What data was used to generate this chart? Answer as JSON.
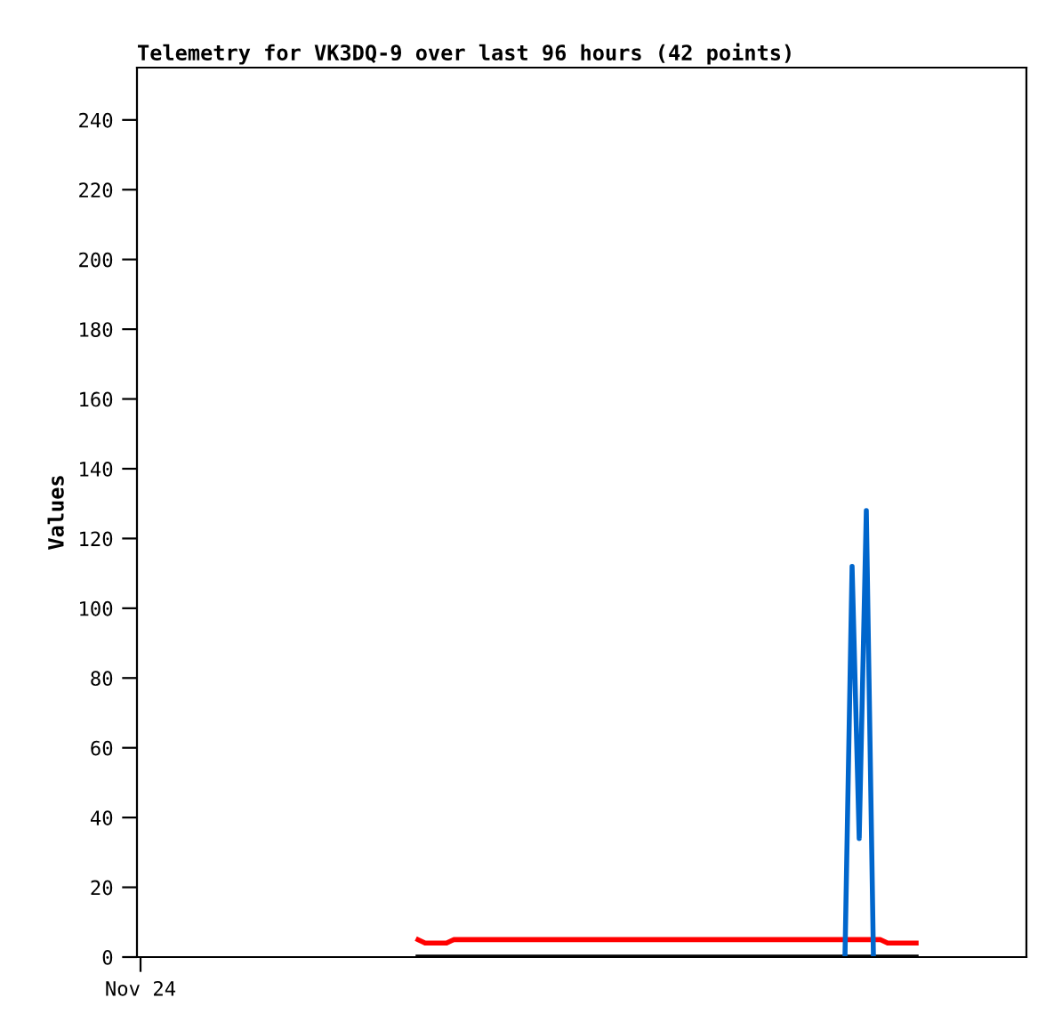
{
  "chart_data": {
    "type": "line",
    "title": "Telemetry for VK3DQ-9 over last 96 hours (42 points)",
    "ylabel": "Values",
    "categories": [
      "Nov 24",
      null,
      null,
      null,
      null,
      null,
      null,
      null,
      null,
      null,
      null,
      null,
      null,
      null,
      null,
      null,
      null,
      null,
      null,
      null,
      null,
      null,
      null,
      null,
      null,
      null,
      null,
      null,
      null,
      null,
      null,
      null,
      null,
      null,
      null,
      null,
      null,
      null,
      null,
      null,
      null,
      null,
      null,
      null,
      null,
      null,
      null,
      null,
      null,
      null,
      null,
      null,
      null,
      null,
      null,
      null,
      null,
      null,
      null,
      null,
      null,
      null,
      null,
      null,
      null,
      null,
      null,
      null,
      null,
      null,
      null,
      null,
      null,
      null,
      null,
      null,
      null,
      null,
      null,
      null,
      null,
      null,
      null,
      null,
      null,
      null,
      null,
      null,
      null,
      null,
      null,
      null,
      null,
      null,
      null,
      null,
      null,
      null,
      null,
      null,
      null,
      null,
      null,
      null,
      null,
      null,
      null,
      null,
      null,
      null,
      null,
      null,
      null,
      null,
      null,
      null,
      null,
      null,
      null,
      null,
      null,
      null,
      null,
      null,
      null
    ],
    "series": [
      {
        "color": "#ff0000",
        "values": [
          null,
          null,
          null,
          null,
          null,
          null,
          null,
          null,
          null,
          null,
          null,
          null,
          null,
          null,
          null,
          null,
          null,
          null,
          null,
          null,
          null,
          null,
          null,
          null,
          null,
          null,
          null,
          null,
          null,
          null,
          null,
          null,
          null,
          null,
          null,
          null,
          null,
          null,
          null,
          5,
          4,
          4,
          4,
          4,
          5,
          5,
          5,
          5,
          5,
          5,
          5,
          5,
          5,
          5,
          5,
          5,
          5,
          5,
          5,
          5,
          5,
          5,
          5,
          5,
          5,
          5,
          5,
          5,
          5,
          5,
          5,
          5,
          5,
          5,
          5,
          5,
          5,
          5,
          5,
          5,
          5,
          5,
          5,
          5,
          5,
          5,
          5,
          5,
          5,
          5,
          5,
          5,
          5,
          5,
          5,
          5,
          5,
          5,
          5,
          5,
          5,
          5,
          5,
          5,
          5,
          4,
          4,
          4,
          4,
          4,
          null,
          null,
          null,
          null,
          null,
          null,
          null,
          null,
          null,
          null,
          null,
          null,
          null,
          null,
          null
        ]
      },
      {
        "color": "#000000",
        "values": [
          null,
          null,
          null,
          null,
          null,
          null,
          null,
          null,
          null,
          null,
          null,
          null,
          null,
          null,
          null,
          null,
          null,
          null,
          null,
          null,
          null,
          null,
          null,
          null,
          null,
          null,
          null,
          null,
          null,
          null,
          null,
          null,
          null,
          null,
          null,
          null,
          null,
          null,
          null,
          0,
          0,
          0,
          0,
          0,
          0,
          0,
          0,
          0,
          0,
          0,
          0,
          0,
          0,
          0,
          0,
          0,
          0,
          0,
          0,
          0,
          0,
          0,
          0,
          0,
          0,
          0,
          0,
          0,
          0,
          0,
          0,
          0,
          0,
          0,
          0,
          0,
          0,
          0,
          0,
          0,
          0,
          0,
          0,
          0,
          0,
          0,
          0,
          0,
          0,
          0,
          0,
          0,
          0,
          0,
          0,
          0,
          0,
          0,
          0,
          0,
          0,
          0,
          0,
          0,
          0,
          0,
          0,
          0,
          0,
          0,
          null,
          null,
          null,
          null,
          null,
          null,
          null,
          null,
          null,
          null,
          null,
          null,
          null,
          null,
          null
        ]
      },
      {
        "color": "#0066cc",
        "values": [
          null,
          null,
          null,
          null,
          null,
          null,
          null,
          null,
          null,
          null,
          null,
          null,
          null,
          null,
          null,
          null,
          null,
          null,
          null,
          null,
          null,
          null,
          null,
          null,
          null,
          null,
          null,
          null,
          null,
          null,
          null,
          null,
          null,
          null,
          null,
          null,
          null,
          null,
          null,
          null,
          null,
          null,
          null,
          null,
          null,
          null,
          null,
          null,
          null,
          null,
          null,
          null,
          null,
          null,
          null,
          null,
          null,
          null,
          null,
          null,
          null,
          null,
          null,
          null,
          null,
          null,
          null,
          null,
          null,
          null,
          null,
          null,
          null,
          null,
          null,
          null,
          null,
          null,
          null,
          null,
          null,
          null,
          null,
          null,
          null,
          null,
          null,
          null,
          null,
          null,
          null,
          null,
          null,
          null,
          null,
          null,
          null,
          null,
          null,
          0,
          112,
          34,
          128,
          0,
          null,
          null,
          null,
          null,
          null,
          null,
          null,
          null,
          null,
          null,
          null,
          null,
          null,
          null,
          null,
          null,
          null,
          null,
          null,
          null,
          null
        ]
      }
    ],
    "ylim": [
      0,
      255
    ],
    "yticks": [
      0,
      20,
      40,
      60,
      80,
      100,
      120,
      140,
      160,
      180,
      200,
      220,
      240
    ],
    "grid": false,
    "legend": false
  }
}
